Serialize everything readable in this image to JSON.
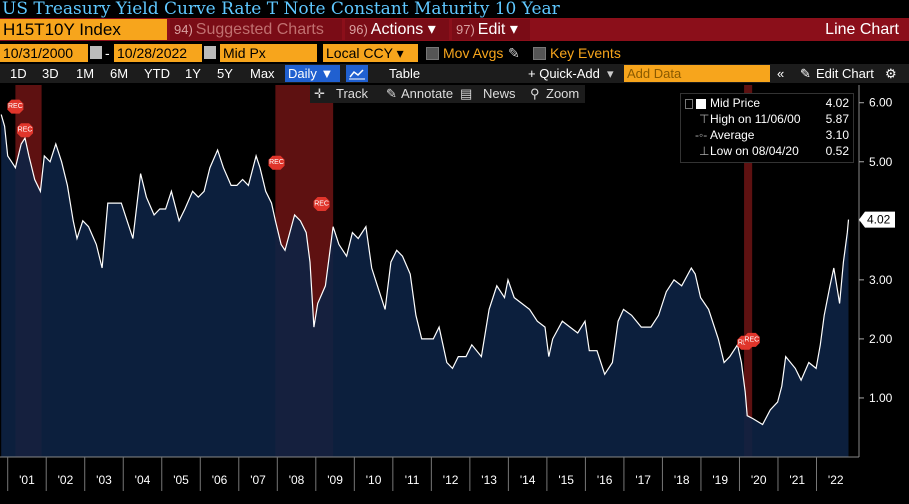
{
  "title": "US Treasury Yield Curve Rate T Note Constant Maturity 10 Year",
  "command_bar": {
    "ticker": "H15T10Y Index",
    "suggested": {
      "num": "94)",
      "label": "Suggested Charts"
    },
    "actions": {
      "num": "96)",
      "label": "Actions"
    },
    "edit": {
      "num": "97)",
      "label": "Edit"
    },
    "chart_type": "Line Chart"
  },
  "settings": {
    "start_date": "10/31/2000",
    "end_date": "10/28/2022",
    "date_sep": "-",
    "price_field": "Mid Px",
    "currency": "Local CCY",
    "mov_avgs": "Mov Avgs",
    "key_events": "Key Events"
  },
  "ranges": {
    "items": [
      "1D",
      "3D",
      "1M",
      "6M",
      "YTD",
      "1Y",
      "5Y",
      "Max"
    ],
    "frequency": "Daily",
    "table": "Table",
    "quick_add": "+ Quick-Add",
    "add_data_placeholder": "Add Data",
    "edit_chart": "Edit Chart"
  },
  "tools": {
    "track": "Track",
    "annotate": "Annotate",
    "news": "News",
    "zoom": "Zoom"
  },
  "legend": {
    "mid_price": {
      "label": "Mid Price",
      "value": "4.02"
    },
    "high": {
      "label": "High on 11/06/00",
      "value": "5.87"
    },
    "average": {
      "label": "Average",
      "value": "3.10"
    },
    "low": {
      "label": "Low on 08/04/20",
      "value": "0.52"
    }
  },
  "colors": {
    "accent": "#f7a51c",
    "command_bar": "#8b0f1a",
    "title": "#5fc8ff",
    "area_fill": "#0d2244",
    "recession": "#6e1414",
    "line": "#ffffff"
  },
  "chart_data": {
    "type": "area",
    "series": [
      {
        "name": "Mid Price",
        "points": [
          [
            2000.83,
            5.8
          ],
          [
            2000.92,
            5.6
          ],
          [
            2001.0,
            5.1
          ],
          [
            2001.1,
            5.0
          ],
          [
            2001.2,
            4.9
          ],
          [
            2001.35,
            5.3
          ],
          [
            2001.45,
            5.4
          ],
          [
            2001.55,
            5.1
          ],
          [
            2001.7,
            4.7
          ],
          [
            2001.85,
            4.5
          ],
          [
            2001.95,
            5.1
          ],
          [
            2002.1,
            5.0
          ],
          [
            2002.25,
            5.3
          ],
          [
            2002.4,
            5.0
          ],
          [
            2002.55,
            4.6
          ],
          [
            2002.7,
            4.0
          ],
          [
            2002.8,
            3.7
          ],
          [
            2002.95,
            4.0
          ],
          [
            2003.1,
            3.9
          ],
          [
            2003.3,
            3.6
          ],
          [
            2003.45,
            3.2
          ],
          [
            2003.6,
            4.3
          ],
          [
            2003.8,
            4.3
          ],
          [
            2003.95,
            4.3
          ],
          [
            2004.1,
            4.0
          ],
          [
            2004.25,
            3.7
          ],
          [
            2004.45,
            4.8
          ],
          [
            2004.6,
            4.4
          ],
          [
            2004.8,
            4.1
          ],
          [
            2004.95,
            4.2
          ],
          [
            2005.1,
            4.2
          ],
          [
            2005.25,
            4.5
          ],
          [
            2005.45,
            4.0
          ],
          [
            2005.6,
            4.2
          ],
          [
            2005.8,
            4.5
          ],
          [
            2005.95,
            4.4
          ],
          [
            2006.1,
            4.5
          ],
          [
            2006.25,
            4.9
          ],
          [
            2006.45,
            5.2
          ],
          [
            2006.6,
            4.9
          ],
          [
            2006.8,
            4.6
          ],
          [
            2006.95,
            4.6
          ],
          [
            2007.1,
            4.7
          ],
          [
            2007.25,
            4.6
          ],
          [
            2007.45,
            5.1
          ],
          [
            2007.55,
            4.9
          ],
          [
            2007.7,
            4.5
          ],
          [
            2007.85,
            4.3
          ],
          [
            2007.95,
            4.0
          ],
          [
            2008.1,
            3.6
          ],
          [
            2008.2,
            3.5
          ],
          [
            2008.45,
            4.1
          ],
          [
            2008.6,
            4.0
          ],
          [
            2008.75,
            3.8
          ],
          [
            2008.85,
            3.3
          ],
          [
            2008.95,
            2.2
          ],
          [
            2009.05,
            2.6
          ],
          [
            2009.25,
            2.9
          ],
          [
            2009.45,
            3.9
          ],
          [
            2009.6,
            3.6
          ],
          [
            2009.8,
            3.4
          ],
          [
            2009.95,
            3.8
          ],
          [
            2010.1,
            3.7
          ],
          [
            2010.3,
            3.9
          ],
          [
            2010.45,
            3.2
          ],
          [
            2010.6,
            2.9
          ],
          [
            2010.8,
            2.5
          ],
          [
            2010.95,
            3.3
          ],
          [
            2011.1,
            3.5
          ],
          [
            2011.25,
            3.4
          ],
          [
            2011.45,
            3.1
          ],
          [
            2011.6,
            2.4
          ],
          [
            2011.75,
            2.0
          ],
          [
            2011.9,
            2.0
          ],
          [
            2012.05,
            2.0
          ],
          [
            2012.2,
            2.2
          ],
          [
            2012.4,
            1.6
          ],
          [
            2012.55,
            1.5
          ],
          [
            2012.7,
            1.7
          ],
          [
            2012.9,
            1.7
          ],
          [
            2013.05,
            1.9
          ],
          [
            2013.3,
            1.7
          ],
          [
            2013.5,
            2.5
          ],
          [
            2013.7,
            2.9
          ],
          [
            2013.9,
            2.7
          ],
          [
            2013.99,
            3.0
          ],
          [
            2014.15,
            2.7
          ],
          [
            2014.35,
            2.6
          ],
          [
            2014.55,
            2.5
          ],
          [
            2014.75,
            2.3
          ],
          [
            2014.95,
            2.2
          ],
          [
            2015.05,
            1.7
          ],
          [
            2015.15,
            2.0
          ],
          [
            2015.4,
            2.3
          ],
          [
            2015.6,
            2.2
          ],
          [
            2015.8,
            2.1
          ],
          [
            2015.99,
            2.3
          ],
          [
            2016.1,
            1.8
          ],
          [
            2016.3,
            1.8
          ],
          [
            2016.5,
            1.4
          ],
          [
            2016.7,
            1.6
          ],
          [
            2016.85,
            2.3
          ],
          [
            2016.99,
            2.5
          ],
          [
            2017.2,
            2.4
          ],
          [
            2017.45,
            2.2
          ],
          [
            2017.7,
            2.2
          ],
          [
            2017.9,
            2.4
          ],
          [
            2018.1,
            2.8
          ],
          [
            2018.3,
            3.0
          ],
          [
            2018.5,
            2.9
          ],
          [
            2018.75,
            3.2
          ],
          [
            2018.85,
            3.1
          ],
          [
            2018.99,
            2.7
          ],
          [
            2019.2,
            2.5
          ],
          [
            2019.45,
            2.0
          ],
          [
            2019.6,
            1.6
          ],
          [
            2019.75,
            1.7
          ],
          [
            2019.95,
            1.9
          ],
          [
            2020.05,
            1.6
          ],
          [
            2020.15,
            1.1
          ],
          [
            2020.2,
            0.7
          ],
          [
            2020.35,
            0.65
          ],
          [
            2020.6,
            0.55
          ],
          [
            2020.8,
            0.8
          ],
          [
            2020.99,
            0.93
          ],
          [
            2021.1,
            1.2
          ],
          [
            2021.2,
            1.7
          ],
          [
            2021.45,
            1.5
          ],
          [
            2021.6,
            1.3
          ],
          [
            2021.8,
            1.6
          ],
          [
            2021.99,
            1.5
          ],
          [
            2022.1,
            1.9
          ],
          [
            2022.2,
            2.4
          ],
          [
            2022.35,
            2.9
          ],
          [
            2022.45,
            3.2
          ],
          [
            2022.55,
            2.8
          ],
          [
            2022.6,
            2.6
          ],
          [
            2022.7,
            3.3
          ],
          [
            2022.8,
            3.8
          ],
          [
            2022.83,
            4.02
          ]
        ]
      }
    ],
    "recessions": [
      [
        2001.2,
        2001.88
      ],
      [
        2007.95,
        2009.45
      ],
      [
        2020.12,
        2020.33
      ]
    ],
    "rec_label": "REC",
    "x_ticks": [
      "'01",
      "'02",
      "'03",
      "'04",
      "'05",
      "'06",
      "'07",
      "'08",
      "'09",
      "'10",
      "'11",
      "'12",
      "'13",
      "'14",
      "'15",
      "'16",
      "'17",
      "'18",
      "'19",
      "'20",
      "'21",
      "'22"
    ],
    "y_ticks": [
      "1.00",
      "2.00",
      "3.00",
      "4.00",
      "5.00",
      "6.00"
    ],
    "last_value_label": "4.02",
    "xlim": [
      2000.8,
      2023.0
    ],
    "ylim": [
      0,
      6.3
    ],
    "grid": false
  }
}
